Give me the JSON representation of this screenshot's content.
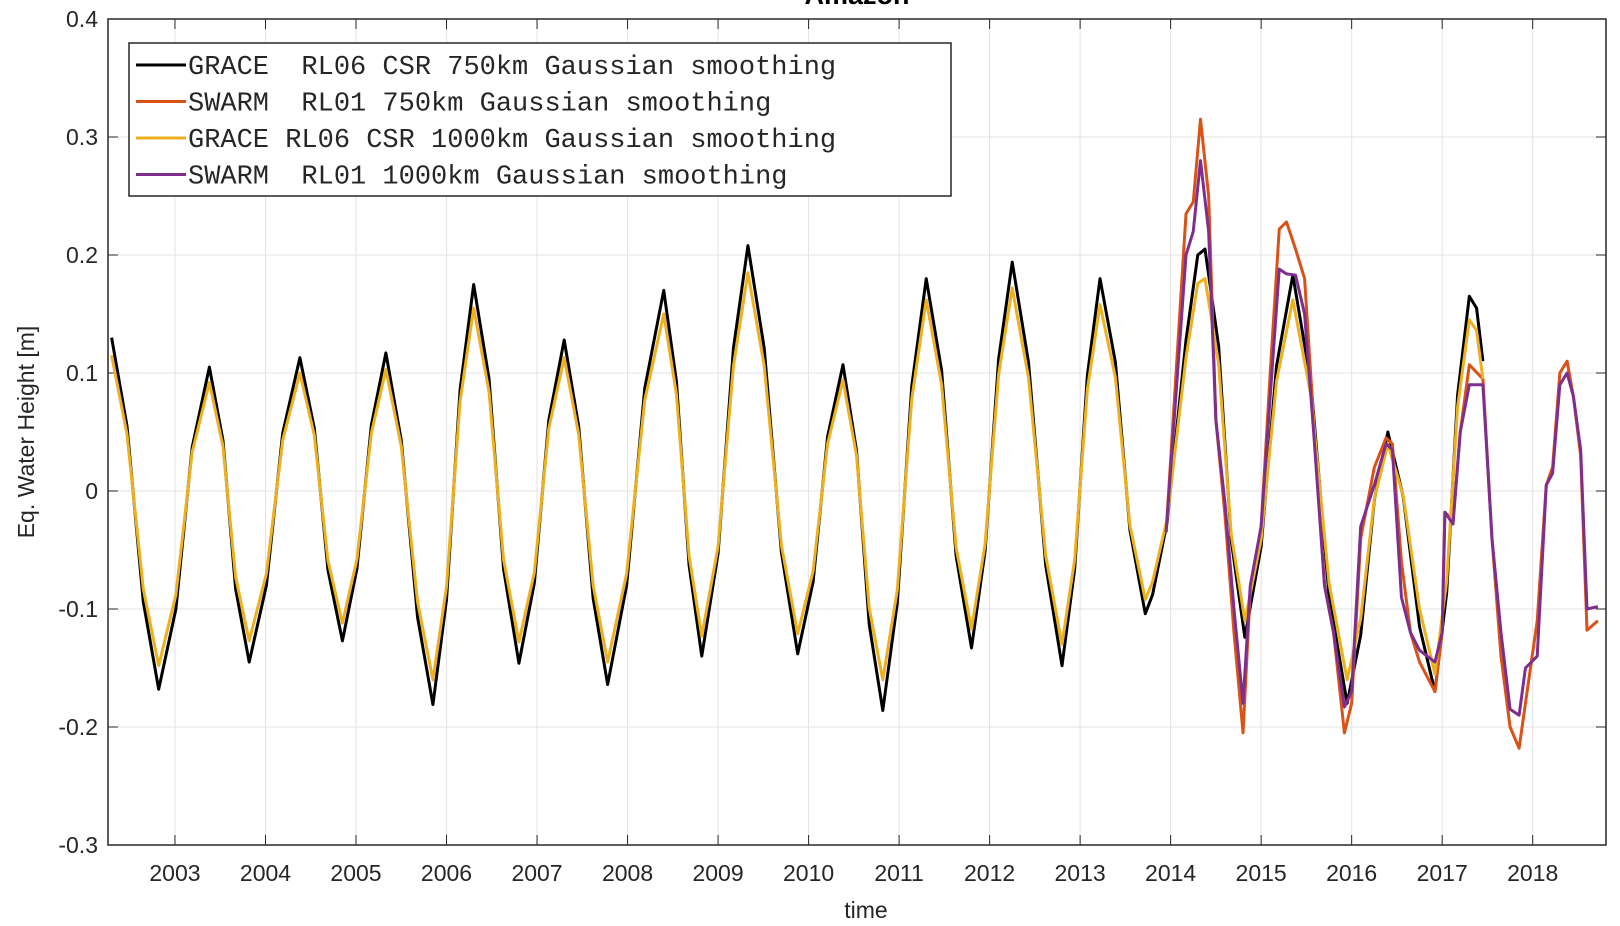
{
  "chart_data": {
    "type": "line",
    "title": "Amazon",
    "xlabel": "time",
    "ylabel": "Eq. Water Height [m]",
    "xlim": [
      2002.26,
      2018.81
    ],
    "ylim": [
      -0.3,
      0.4
    ],
    "xticks": [
      2003,
      2004,
      2005,
      2006,
      2007,
      2008,
      2009,
      2010,
      2011,
      2012,
      2013,
      2014,
      2015,
      2016,
      2017,
      2018
    ],
    "yticks": [
      -0.3,
      -0.2,
      -0.1,
      0,
      0.1,
      0.2,
      0.3,
      0.4
    ],
    "grid": true,
    "legend": "upper left",
    "series": [
      {
        "name": "GRACE  RL06 CSR 750km Gaussian smoothing",
        "color": "#000000",
        "x": [
          2002.3,
          2002.47,
          2002.65,
          2002.82,
          2003.01,
          2003.19,
          2003.38,
          2003.53,
          2003.67,
          2003.82,
          2004.01,
          2004.19,
          2004.38,
          2004.54,
          2004.69,
          2004.85,
          2005.01,
          2005.17,
          2005.33,
          2005.5,
          2005.68,
          2005.85,
          2006.0,
          2006.15,
          2006.3,
          2006.47,
          2006.63,
          2006.8,
          2006.97,
          2007.13,
          2007.3,
          2007.46,
          2007.62,
          2007.78,
          2007.99,
          2008.19,
          2008.4,
          2008.54,
          2008.68,
          2008.82,
          2009.0,
          2009.17,
          2009.33,
          2009.51,
          2009.7,
          2009.88,
          2010.05,
          2010.21,
          2010.38,
          2010.53,
          2010.67,
          2010.82,
          2010.98,
          2011.14,
          2011.3,
          2011.47,
          2011.63,
          2011.8,
          2011.95,
          2012.1,
          2012.25,
          2012.43,
          2012.62,
          2012.8,
          2012.94,
          2013.08,
          2013.22,
          2013.39,
          2013.55,
          2013.72,
          2013.8,
          2013.96,
          2014.17,
          2014.3,
          2014.38,
          2014.53,
          2014.67,
          2014.82,
          2015.0,
          2015.17,
          2015.35,
          2015.55,
          2015.75,
          2015.95,
          2016.1,
          2016.25,
          2016.4,
          2016.57,
          2016.75,
          2016.92,
          2017.05,
          2017.17,
          2017.3,
          2017.38,
          2017.45
        ],
        "values": [
          0.13,
          0.055,
          -0.094,
          -0.168,
          -0.1,
          0.037,
          0.105,
          0.043,
          -0.083,
          -0.145,
          -0.08,
          0.049,
          0.113,
          0.053,
          -0.067,
          -0.127,
          -0.066,
          0.056,
          0.117,
          0.043,
          -0.107,
          -0.181,
          -0.092,
          0.086,
          0.175,
          0.095,
          -0.066,
          -0.146,
          -0.078,
          0.06,
          0.128,
          0.055,
          -0.091,
          -0.164,
          -0.08,
          0.087,
          0.17,
          0.093,
          -0.063,
          -0.14,
          -0.053,
          0.121,
          0.208,
          0.121,
          -0.052,
          -0.138,
          -0.077,
          0.046,
          0.107,
          0.034,
          -0.113,
          -0.186,
          -0.095,
          0.089,
          0.18,
          0.102,
          -0.055,
          -0.133,
          -0.051,
          0.112,
          0.194,
          0.109,
          -0.063,
          -0.148,
          -0.066,
          0.098,
          0.18,
          0.109,
          -0.033,
          -0.104,
          -0.088,
          -0.027,
          0.128,
          0.2,
          0.205,
          0.123,
          -0.042,
          -0.124,
          -0.047,
          0.106,
          0.183,
          0.092,
          -0.089,
          -0.18,
          -0.122,
          -0.008,
          0.05,
          -0.005,
          -0.115,
          -0.17,
          -0.086,
          0.081,
          0.165,
          0.155,
          0.11
        ]
      },
      {
        "name": "SWARM  RL01 750km Gaussian smoothing",
        "color": "#d95319",
        "x": [
          2013.95,
          2014.17,
          2014.25,
          2014.33,
          2014.42,
          2014.5,
          2014.6,
          2014.7,
          2014.8,
          2014.88,
          2015.0,
          2015.1,
          2015.2,
          2015.28,
          2015.38,
          2015.48,
          2015.58,
          2015.7,
          2015.8,
          2015.92,
          2016.0,
          2016.1,
          2016.25,
          2016.38,
          2016.45,
          2016.55,
          2016.65,
          2016.75,
          2016.92,
          2017.0,
          2017.03,
          2017.12,
          2017.2,
          2017.3,
          2017.45,
          2017.55,
          2017.65,
          2017.75,
          2017.85,
          2017.92,
          2018.05,
          2018.15,
          2018.22,
          2018.3,
          2018.38,
          2018.45,
          2018.53,
          2018.6,
          2018.72
        ],
        "values": [
          -0.035,
          0.235,
          0.245,
          0.315,
          0.25,
          0.06,
          -0.02,
          -0.12,
          -0.205,
          -0.085,
          -0.03,
          0.1,
          0.222,
          0.228,
          0.205,
          0.18,
          0.06,
          -0.08,
          -0.12,
          -0.205,
          -0.18,
          -0.04,
          0.02,
          0.045,
          0.04,
          -0.06,
          -0.12,
          -0.145,
          -0.17,
          -0.12,
          -0.018,
          -0.025,
          0.05,
          0.107,
          0.095,
          -0.04,
          -0.14,
          -0.2,
          -0.218,
          -0.18,
          -0.11,
          0.005,
          0.02,
          0.1,
          0.11,
          0.08,
          0.03,
          -0.118,
          -0.11
        ]
      },
      {
        "name": "GRACE RL06 CSR 1000km Gaussian smoothing",
        "color": "#edb120",
        "x": [
          2002.3,
          2002.47,
          2002.65,
          2002.82,
          2003.01,
          2003.19,
          2003.38,
          2003.53,
          2003.67,
          2003.82,
          2004.01,
          2004.19,
          2004.38,
          2004.54,
          2004.69,
          2004.85,
          2005.01,
          2005.17,
          2005.33,
          2005.5,
          2005.68,
          2005.85,
          2006.0,
          2006.15,
          2006.3,
          2006.47,
          2006.63,
          2006.8,
          2006.97,
          2007.13,
          2007.3,
          2007.46,
          2007.62,
          2007.78,
          2007.99,
          2008.19,
          2008.4,
          2008.54,
          2008.68,
          2008.82,
          2009.0,
          2009.17,
          2009.33,
          2009.51,
          2009.7,
          2009.88,
          2010.05,
          2010.21,
          2010.38,
          2010.53,
          2010.67,
          2010.82,
          2010.98,
          2011.14,
          2011.3,
          2011.47,
          2011.63,
          2011.8,
          2011.95,
          2012.1,
          2012.25,
          2012.43,
          2012.62,
          2012.8,
          2012.94,
          2013.08,
          2013.22,
          2013.39,
          2013.55,
          2013.72,
          2013.8,
          2013.96,
          2014.17,
          2014.3,
          2014.38,
          2014.53,
          2014.67,
          2014.82,
          2015.0,
          2015.17,
          2015.35,
          2015.55,
          2015.75,
          2015.95,
          2016.1,
          2016.25,
          2016.4,
          2016.57,
          2016.75,
          2016.92,
          2017.05,
          2017.17,
          2017.3,
          2017.38,
          2017.45
        ],
        "values": [
          0.115,
          0.048,
          -0.083,
          -0.148,
          -0.088,
          0.033,
          0.092,
          0.038,
          -0.073,
          -0.127,
          -0.07,
          0.043,
          0.1,
          0.047,
          -0.059,
          -0.112,
          -0.058,
          0.049,
          0.103,
          0.038,
          -0.094,
          -0.16,
          -0.081,
          0.076,
          0.155,
          0.084,
          -0.058,
          -0.128,
          -0.069,
          0.053,
          0.113,
          0.048,
          -0.08,
          -0.145,
          -0.07,
          0.077,
          0.15,
          0.082,
          -0.055,
          -0.123,
          -0.047,
          0.106,
          0.185,
          0.106,
          -0.046,
          -0.121,
          -0.068,
          0.04,
          0.094,
          0.03,
          -0.099,
          -0.16,
          -0.084,
          0.078,
          0.162,
          0.09,
          -0.048,
          -0.117,
          -0.045,
          0.099,
          0.172,
          0.096,
          -0.055,
          -0.13,
          -0.058,
          0.086,
          0.158,
          0.096,
          -0.029,
          -0.092,
          -0.077,
          -0.024,
          0.113,
          0.176,
          0.18,
          0.108,
          -0.037,
          -0.11,
          -0.041,
          0.093,
          0.162,
          0.081,
          -0.078,
          -0.16,
          -0.108,
          -0.007,
          0.04,
          -0.004,
          -0.1,
          -0.155,
          -0.076,
          0.071,
          0.145,
          0.136,
          0.095
        ]
      },
      {
        "name": "SWARM  RL01 1000km Gaussian smoothing",
        "color": "#7e2f8e",
        "x": [
          2013.95,
          2014.17,
          2014.25,
          2014.33,
          2014.42,
          2014.5,
          2014.6,
          2014.7,
          2014.8,
          2014.88,
          2015.0,
          2015.1,
          2015.2,
          2015.28,
          2015.38,
          2015.48,
          2015.58,
          2015.7,
          2015.8,
          2015.92,
          2016.0,
          2016.1,
          2016.25,
          2016.38,
          2016.45,
          2016.55,
          2016.65,
          2016.75,
          2016.92,
          2017.0,
          2017.03,
          2017.12,
          2017.2,
          2017.3,
          2017.45,
          2017.55,
          2017.65,
          2017.75,
          2017.85,
          2017.92,
          2018.05,
          2018.15,
          2018.22,
          2018.3,
          2018.38,
          2018.45,
          2018.53,
          2018.6,
          2018.72
        ],
        "values": [
          -0.035,
          0.2,
          0.22,
          0.28,
          0.22,
          0.06,
          -0.01,
          -0.1,
          -0.18,
          -0.08,
          -0.03,
          0.08,
          0.188,
          0.184,
          0.183,
          0.15,
          0.05,
          -0.08,
          -0.12,
          -0.183,
          -0.17,
          -0.03,
          0.005,
          0.04,
          0.035,
          -0.09,
          -0.12,
          -0.135,
          -0.145,
          -0.12,
          -0.018,
          -0.028,
          0.05,
          0.09,
          0.09,
          -0.04,
          -0.12,
          -0.185,
          -0.19,
          -0.15,
          -0.14,
          0.005,
          0.015,
          0.09,
          0.1,
          0.08,
          0.035,
          -0.1,
          -0.098
        ]
      }
    ]
  }
}
